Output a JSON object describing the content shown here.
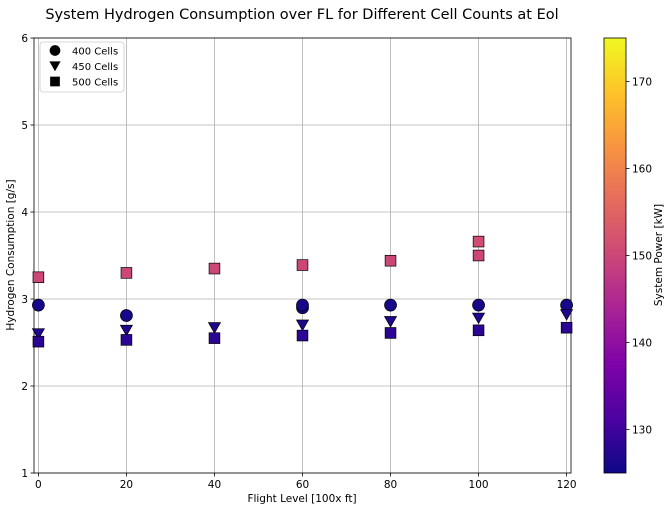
{
  "chart_data": {
    "type": "scatter",
    "title": "System Hydrogen Consumption over FL for Different Cell Counts at Eol",
    "xlabel": "Flight Level [100x ft]",
    "ylabel": "Hydrogen Consumption [g/s]",
    "xlim": [
      -1,
      121
    ],
    "ylim": [
      1,
      6
    ],
    "xticks": [
      0,
      20,
      40,
      60,
      80,
      100,
      120
    ],
    "yticks": [
      1,
      2,
      3,
      4,
      5,
      6
    ],
    "grid": true,
    "legend_position": "top-left",
    "colormap": "plasma",
    "colorbar": {
      "label": "System Power [kW]",
      "min": 125,
      "max": 175,
      "ticks": [
        130,
        140,
        150,
        160,
        170
      ]
    },
    "series": [
      {
        "name": "400 Cells",
        "marker": "circle",
        "points": [
          {
            "x": 0,
            "y": 2.93,
            "power": 126
          },
          {
            "x": 20,
            "y": 2.81,
            "power": 126
          },
          {
            "x": 60,
            "y": 2.9,
            "power": 126
          },
          {
            "x": 60,
            "y": 2.93,
            "power": 126
          },
          {
            "x": 80,
            "y": 2.93,
            "power": 126
          },
          {
            "x": 100,
            "y": 2.93,
            "power": 126
          },
          {
            "x": 120,
            "y": 2.93,
            "power": 126
          }
        ]
      },
      {
        "name": "450 Cells",
        "marker": "triangle-down",
        "points": [
          {
            "x": 0,
            "y": 2.6,
            "power": 127
          },
          {
            "x": 20,
            "y": 2.64,
            "power": 127
          },
          {
            "x": 40,
            "y": 2.67,
            "power": 127
          },
          {
            "x": 60,
            "y": 2.7,
            "power": 127
          },
          {
            "x": 80,
            "y": 2.74,
            "power": 127
          },
          {
            "x": 100,
            "y": 2.78,
            "power": 127
          },
          {
            "x": 120,
            "y": 2.82,
            "power": 127
          }
        ]
      },
      {
        "name": "500 Cells",
        "marker": "square",
        "points": [
          {
            "x": 0,
            "y": 2.51,
            "power": 128
          },
          {
            "x": 20,
            "y": 2.53,
            "power": 128
          },
          {
            "x": 40,
            "y": 2.55,
            "power": 128
          },
          {
            "x": 60,
            "y": 2.58,
            "power": 128
          },
          {
            "x": 80,
            "y": 2.61,
            "power": 128
          },
          {
            "x": 100,
            "y": 2.64,
            "power": 128
          },
          {
            "x": 120,
            "y": 2.67,
            "power": 128
          },
          {
            "x": 0,
            "y": 3.25,
            "power": 150
          },
          {
            "x": 20,
            "y": 3.3,
            "power": 150
          },
          {
            "x": 40,
            "y": 3.35,
            "power": 150
          },
          {
            "x": 60,
            "y": 3.39,
            "power": 150
          },
          {
            "x": 80,
            "y": 3.44,
            "power": 150
          },
          {
            "x": 100,
            "y": 3.5,
            "power": 150
          },
          {
            "x": 100,
            "y": 3.66,
            "power": 151
          }
        ]
      }
    ]
  }
}
